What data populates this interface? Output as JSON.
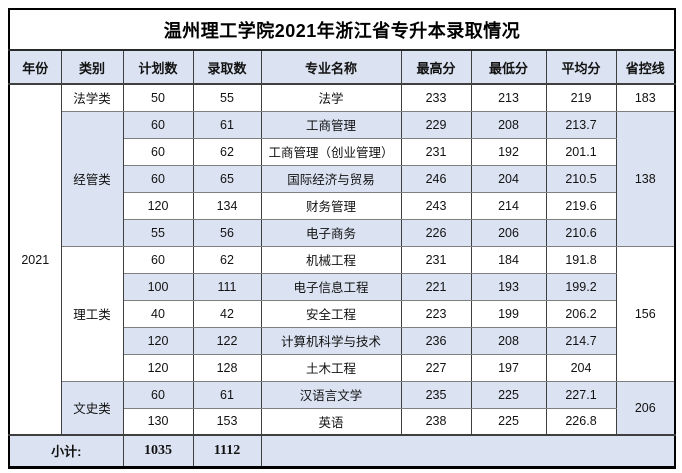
{
  "title": "温州理工学院2021年浙江省专升本录取情况",
  "columns": [
    {
      "key": "year",
      "label": "年份"
    },
    {
      "key": "category",
      "label": "类别"
    },
    {
      "key": "plan",
      "label": "计划数"
    },
    {
      "key": "admitted",
      "label": "录取数"
    },
    {
      "key": "major",
      "label": "专业名称"
    },
    {
      "key": "max-score",
      "label": "最高分"
    },
    {
      "key": "min-score",
      "label": "最低分"
    },
    {
      "key": "avg-score",
      "label": "平均分"
    },
    {
      "key": "province-line",
      "label": "省控线"
    }
  ],
  "year": "2021",
  "groups": [
    {
      "category": "法学类",
      "province_line": "183",
      "majors": [
        {
          "plan": "50",
          "admitted": "55",
          "major": "法学",
          "max": "233",
          "min": "213",
          "avg": "219"
        }
      ]
    },
    {
      "category": "经管类",
      "province_line": "138",
      "majors": [
        {
          "plan": "60",
          "admitted": "61",
          "major": "工商管理",
          "max": "229",
          "min": "208",
          "avg": "213.7"
        },
        {
          "plan": "60",
          "admitted": "62",
          "major": "工商管理（创业管理）",
          "max": "231",
          "min": "192",
          "avg": "201.1"
        },
        {
          "plan": "60",
          "admitted": "65",
          "major": "国际经济与贸易",
          "max": "246",
          "min": "204",
          "avg": "210.5"
        },
        {
          "plan": "120",
          "admitted": "134",
          "major": "财务管理",
          "max": "243",
          "min": "214",
          "avg": "219.6"
        },
        {
          "plan": "55",
          "admitted": "56",
          "major": "电子商务",
          "max": "226",
          "min": "206",
          "avg": "210.6"
        }
      ]
    },
    {
      "category": "理工类",
      "province_line": "156",
      "majors": [
        {
          "plan": "60",
          "admitted": "62",
          "major": "机械工程",
          "max": "231",
          "min": "184",
          "avg": "191.8"
        },
        {
          "plan": "100",
          "admitted": "111",
          "major": "电子信息工程",
          "max": "221",
          "min": "193",
          "avg": "199.2"
        },
        {
          "plan": "40",
          "admitted": "42",
          "major": "安全工程",
          "max": "223",
          "min": "199",
          "avg": "206.2"
        },
        {
          "plan": "120",
          "admitted": "122",
          "major": "计算机科学与技术",
          "max": "236",
          "min": "208",
          "avg": "214.7"
        },
        {
          "plan": "120",
          "admitted": "128",
          "major": "土木工程",
          "max": "227",
          "min": "197",
          "avg": "204"
        }
      ]
    },
    {
      "category": "文史类",
      "province_line": "206",
      "majors": [
        {
          "plan": "60",
          "admitted": "61",
          "major": "汉语言文学",
          "max": "235",
          "min": "225",
          "avg": "227.1"
        },
        {
          "plan": "130",
          "admitted": "153",
          "major": "英语",
          "max": "238",
          "min": "225",
          "avg": "226.8"
        }
      ]
    }
  ],
  "footer": {
    "label": "小计:",
    "plan_total": "1035",
    "admitted_total": "1112"
  },
  "colors": {
    "row_alt_bg": "#dbe2f1",
    "header_bg": "#dbe2f1",
    "border_outer": "#000000",
    "border_inner_vertical": "#3f3f3f",
    "border_inner_horizontal": "#7f7f7f"
  }
}
